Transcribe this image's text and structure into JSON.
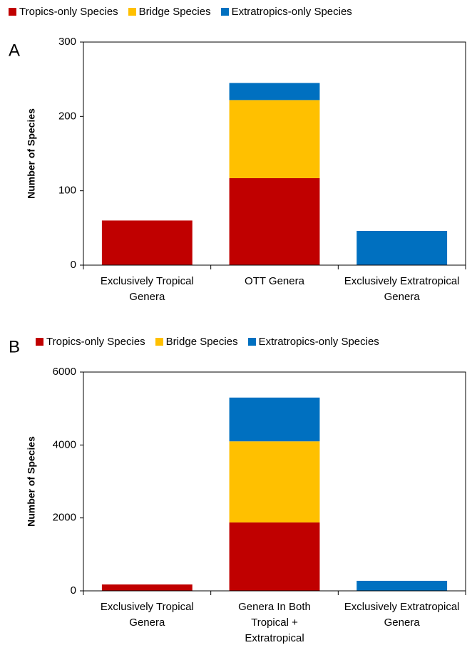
{
  "chart_data": [
    {
      "type": "stacked_bar",
      "label": "A",
      "ylabel": "Number of Species",
      "categories": [
        "Exclusively Tropical Genera",
        "OTT Genera",
        "Exclusively Extratropical Genera"
      ],
      "series": [
        {
          "name": "Tropics-only Species",
          "color": "#c00000",
          "values": [
            60,
            117,
            0
          ]
        },
        {
          "name": "Bridge Species",
          "color": "#ffc000",
          "values": [
            0,
            105,
            0
          ]
        },
        {
          "name": "Extratropics-only Species",
          "color": "#0070c0",
          "values": [
            0,
            23,
            46
          ]
        }
      ],
      "ylim": [
        0,
        300
      ],
      "yticks": [
        0,
        100,
        200,
        300
      ],
      "legend": "top"
    },
    {
      "type": "stacked_bar",
      "label": "B",
      "ylabel": "Number of Species",
      "categories": [
        "Exclusively Tropical Genera",
        "Genera In Both Tropical + Extratropical",
        "Exclusively Extratropical Genera"
      ],
      "series": [
        {
          "name": "Tropics-only Species",
          "color": "#c00000",
          "values": [
            175,
            1875,
            0
          ]
        },
        {
          "name": "Bridge Species",
          "color": "#ffc000",
          "values": [
            0,
            2225,
            0
          ]
        },
        {
          "name": "Extratropics-only Species",
          "color": "#0070c0",
          "values": [
            0,
            1200,
            275
          ]
        }
      ],
      "ylim": [
        0,
        6000
      ],
      "yticks": [
        0,
        2000,
        4000,
        6000
      ],
      "legend": "top"
    }
  ]
}
